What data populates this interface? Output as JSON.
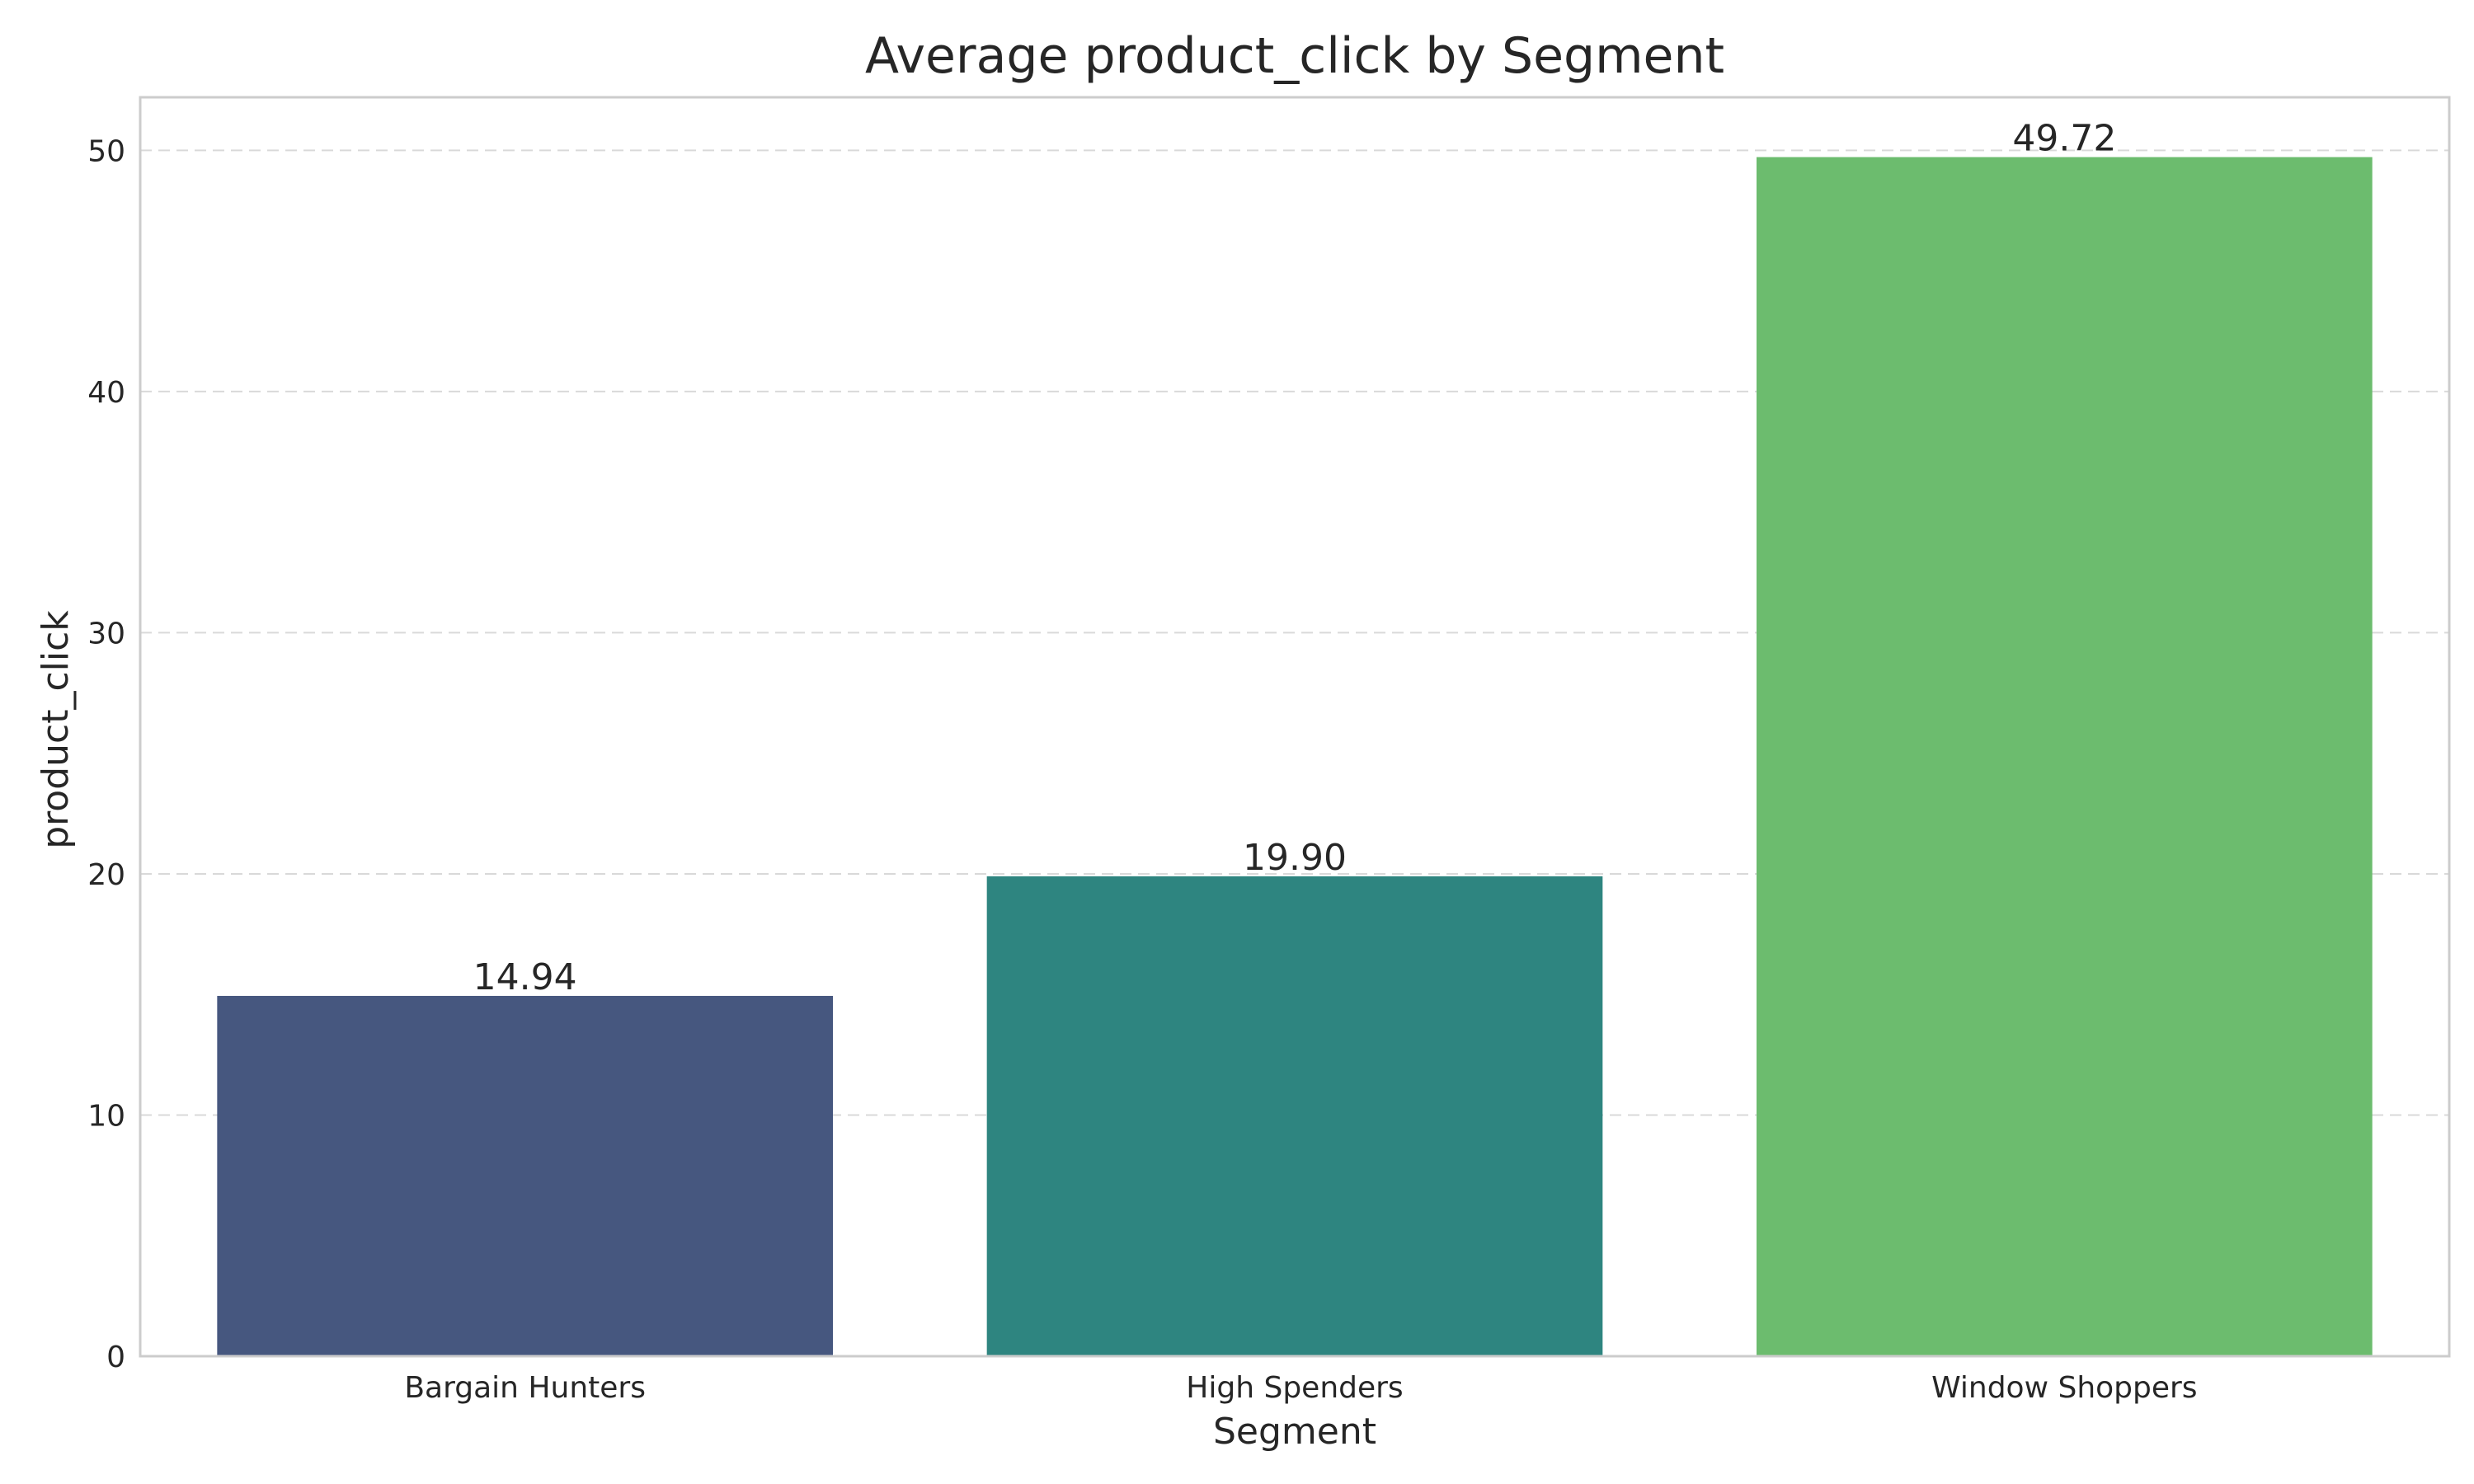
{
  "chart_data": {
    "type": "bar",
    "title": "Average product_click by Segment",
    "xlabel": "Segment",
    "ylabel": "product_click",
    "categories": [
      "Bargain Hunters",
      "High Spenders",
      "Window Shoppers"
    ],
    "values": [
      14.94,
      19.9,
      49.72
    ],
    "value_labels": [
      "14.94",
      "19.90",
      "49.72"
    ],
    "colors": [
      "#46577f",
      "#2e8580",
      "#6cbc6e"
    ],
    "ylim": [
      0,
      52.2
    ],
    "yticks": [
      0,
      10,
      20,
      30,
      40,
      50
    ],
    "grid": "y-dashed",
    "legend": "none"
  }
}
